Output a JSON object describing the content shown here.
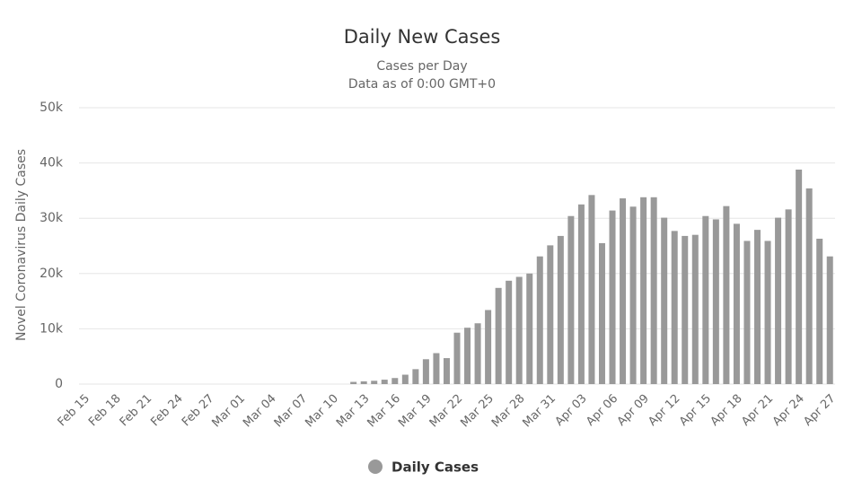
{
  "chart_data": {
    "type": "bar",
    "title": "Daily New Cases",
    "subtitle": [
      "Cases per Day",
      "Data as of 0:00 GMT+0"
    ],
    "y_label": "Novel Coronavirus Daily Cases",
    "categories": [
      "Feb 15",
      null,
      null,
      "Feb 18",
      null,
      null,
      "Feb 21",
      null,
      null,
      "Feb 24",
      null,
      null,
      "Feb 27",
      null,
      null,
      "Mar 01",
      null,
      null,
      "Mar 04",
      null,
      null,
      "Mar 07",
      null,
      null,
      "Mar 10",
      null,
      null,
      "Mar 13",
      null,
      null,
      "Mar 16",
      null,
      null,
      "Mar 19",
      null,
      null,
      "Mar 22",
      null,
      null,
      "Mar 25",
      null,
      null,
      "Mar 28",
      null,
      null,
      "Mar 31",
      null,
      null,
      "Apr 03",
      null,
      null,
      "Apr 06",
      null,
      null,
      "Apr 09",
      null,
      null,
      "Apr 12",
      null,
      null,
      "Apr 15",
      null,
      null,
      "Apr 18",
      null,
      null,
      "Apr 21",
      null,
      null,
      "Apr 24",
      null,
      null,
      "Apr 27"
    ],
    "series": [
      {
        "name": "Daily Cases",
        "color": "#999999",
        "values": [
          0,
          0,
          0,
          0,
          0,
          0,
          0,
          0,
          0,
          0,
          0,
          0,
          0,
          0,
          0,
          0,
          0,
          0,
          0,
          0,
          0,
          0,
          0,
          0,
          0,
          0,
          400,
          500,
          600,
          800,
          1100,
          1700,
          2700,
          4500,
          5600,
          4700,
          9300,
          10200,
          11000,
          13400,
          17400,
          18700,
          19400,
          20000,
          23100,
          25100,
          26800,
          30400,
          32500,
          34200,
          25500,
          31400,
          33600,
          32100,
          33800,
          33800,
          30100,
          27700,
          26800,
          27000,
          30400,
          29800,
          32200,
          29000,
          25900,
          27900,
          25900,
          30100,
          31600,
          38800,
          35400,
          26300,
          23100
        ]
      }
    ],
    "ylim": [
      0,
      50000
    ],
    "yticks": [
      0,
      {
        "value": 10000,
        "label": "10k"
      },
      {
        "value": 20000,
        "label": "20k"
      },
      {
        "value": 30000,
        "label": "30k"
      },
      {
        "value": 40000,
        "label": "40k"
      },
      {
        "value": 50000,
        "label": "50k"
      }
    ],
    "grid": true
  }
}
